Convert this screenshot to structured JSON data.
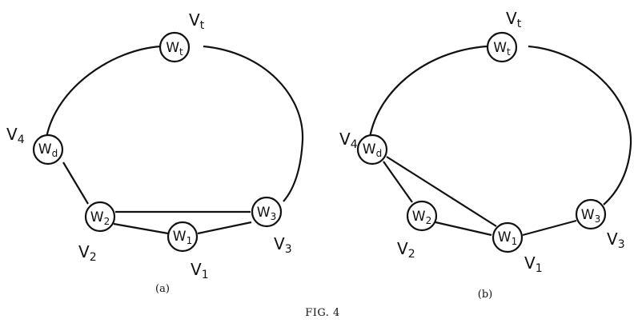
{
  "figure": {
    "caption": "FIG. 4",
    "panels": [
      {
        "id": "a",
        "label": "(a)",
        "nodes": [
          {
            "id": "wt",
            "name": "W",
            "sub": "t",
            "vlabel": "V",
            "vsub": "t"
          },
          {
            "id": "wd",
            "name": "W",
            "sub": "d",
            "vlabel": "V",
            "vsub": "4"
          },
          {
            "id": "w2",
            "name": "W",
            "sub": "2",
            "vlabel": "V",
            "vsub": "2"
          },
          {
            "id": "w1",
            "name": "W",
            "sub": "1",
            "vlabel": "V",
            "vsub": "1"
          },
          {
            "id": "w3",
            "name": "W",
            "sub": "3",
            "vlabel": "V",
            "vsub": "3"
          }
        ],
        "edges": [
          [
            "wt",
            "wd"
          ],
          [
            "wd",
            "w2"
          ],
          [
            "w2",
            "w3"
          ],
          [
            "w2",
            "w1"
          ],
          [
            "w1",
            "w3"
          ],
          [
            "w3",
            "wt"
          ]
        ]
      },
      {
        "id": "b",
        "label": "(b)",
        "nodes": [
          {
            "id": "wt",
            "name": "W",
            "sub": "t",
            "vlabel": "V",
            "vsub": "t"
          },
          {
            "id": "wd",
            "name": "W",
            "sub": "d",
            "vlabel": "V",
            "vsub": "4"
          },
          {
            "id": "w2",
            "name": "W",
            "sub": "2",
            "vlabel": "V",
            "vsub": "2"
          },
          {
            "id": "w1",
            "name": "W",
            "sub": "1",
            "vlabel": "V",
            "vsub": "1"
          },
          {
            "id": "w3",
            "name": "W",
            "sub": "3",
            "vlabel": "V",
            "vsub": "3"
          }
        ],
        "edges": [
          [
            "wt",
            "wd"
          ],
          [
            "wd",
            "w2"
          ],
          [
            "wd",
            "w1"
          ],
          [
            "w2",
            "w1"
          ],
          [
            "w1",
            "w3"
          ],
          [
            "w3",
            "wt"
          ]
        ]
      }
    ]
  }
}
